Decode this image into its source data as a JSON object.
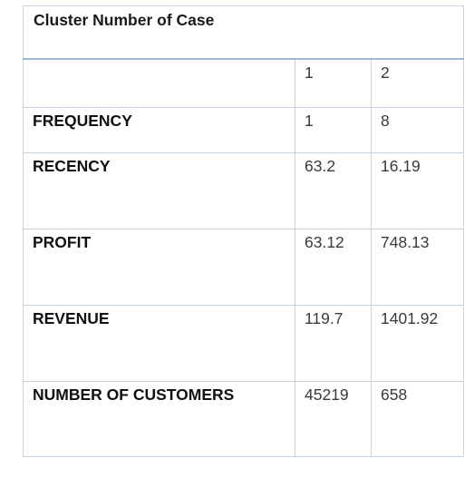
{
  "table": {
    "title": "Cluster Number of Case",
    "columns": [
      "",
      "1",
      "2"
    ],
    "rows": [
      {
        "label": "FREQUENCY",
        "values": [
          "1",
          "8"
        ]
      },
      {
        "label": "RECENCY",
        "values": [
          "63.2",
          "16.19"
        ]
      },
      {
        "label": "PROFIT",
        "values": [
          "63.12",
          "748.13"
        ]
      },
      {
        "label": "REVENUE",
        "values": [
          "119.7",
          "1401.92"
        ]
      },
      {
        "label": "NUMBER OF CUSTOMERS",
        "values": [
          "45219",
          "658"
        ]
      }
    ]
  },
  "colors": {
    "border": "#c5d4e2",
    "header_rule": "#9db7d2",
    "text": "#1a1a1a"
  }
}
